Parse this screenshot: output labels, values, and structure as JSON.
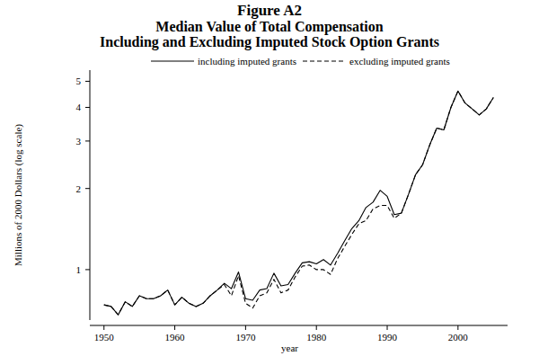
{
  "chart_data": {
    "type": "line",
    "title": "Figure A2",
    "subtitle": [
      "Median Value of Total Compensation",
      "Including and Excluding Imputed Stock Option Grants"
    ],
    "x_label": "year",
    "y_label": "Millions of 2000 Dollars (log scale)",
    "log": "y",
    "grid": false,
    "legend": "top",
    "x": [
      1950,
      1951,
      1952,
      1953,
      1954,
      1955,
      1956,
      1957,
      1958,
      1959,
      1960,
      1961,
      1962,
      1963,
      1964,
      1965,
      1966,
      1967,
      1968,
      1969,
      1970,
      1971,
      1972,
      1973,
      1974,
      1975,
      1976,
      1977,
      1978,
      1979,
      1980,
      1981,
      1982,
      1983,
      1984,
      1985,
      1986,
      1987,
      1988,
      1989,
      1990,
      1991,
      1992,
      1993,
      1994,
      1995,
      1996,
      1997,
      1998,
      1999,
      2000,
      2001,
      2002,
      2003,
      2004,
      2005
    ],
    "xlim": [
      1948,
      2007
    ],
    "xticks": [
      1950,
      1960,
      1970,
      1980,
      1990,
      2000
    ],
    "ylim": [
      0.65,
      5.5
    ],
    "yticks": [
      1,
      2,
      3,
      4,
      5
    ],
    "series": [
      {
        "name": "including imputed grants",
        "color": "#000000",
        "line_style": "solid",
        "values": [
          0.74,
          0.73,
          0.68,
          0.76,
          0.73,
          0.8,
          0.78,
          0.78,
          0.8,
          0.84,
          0.74,
          0.79,
          0.75,
          0.73,
          0.75,
          0.8,
          0.84,
          0.89,
          0.85,
          0.98,
          0.78,
          0.77,
          0.84,
          0.85,
          0.97,
          0.87,
          0.88,
          0.97,
          1.06,
          1.07,
          1.05,
          1.09,
          1.04,
          1.15,
          1.28,
          1.42,
          1.52,
          1.7,
          1.78,
          1.97,
          1.87,
          1.6,
          1.62,
          1.9,
          2.25,
          2.45,
          2.9,
          3.35,
          3.3,
          4.0,
          4.6,
          4.15,
          3.95,
          3.75,
          3.95,
          4.35
        ]
      },
      {
        "name": "excluding imputed grants",
        "color": "#000000",
        "line_style": "dashed",
        "values": [
          0.74,
          0.73,
          0.68,
          0.76,
          0.73,
          0.8,
          0.78,
          0.78,
          0.8,
          0.84,
          0.74,
          0.79,
          0.75,
          0.73,
          0.75,
          0.8,
          0.84,
          0.88,
          0.8,
          0.95,
          0.75,
          0.72,
          0.8,
          0.82,
          0.92,
          0.82,
          0.84,
          0.94,
          1.03,
          1.04,
          1.0,
          1.0,
          0.96,
          1.1,
          1.22,
          1.35,
          1.48,
          1.52,
          1.68,
          1.73,
          1.73,
          1.55,
          1.62,
          1.9,
          2.25,
          2.45,
          2.9,
          3.35,
          3.3,
          4.0,
          4.6,
          4.15,
          3.95,
          3.75,
          3.95,
          4.35
        ]
      }
    ]
  }
}
